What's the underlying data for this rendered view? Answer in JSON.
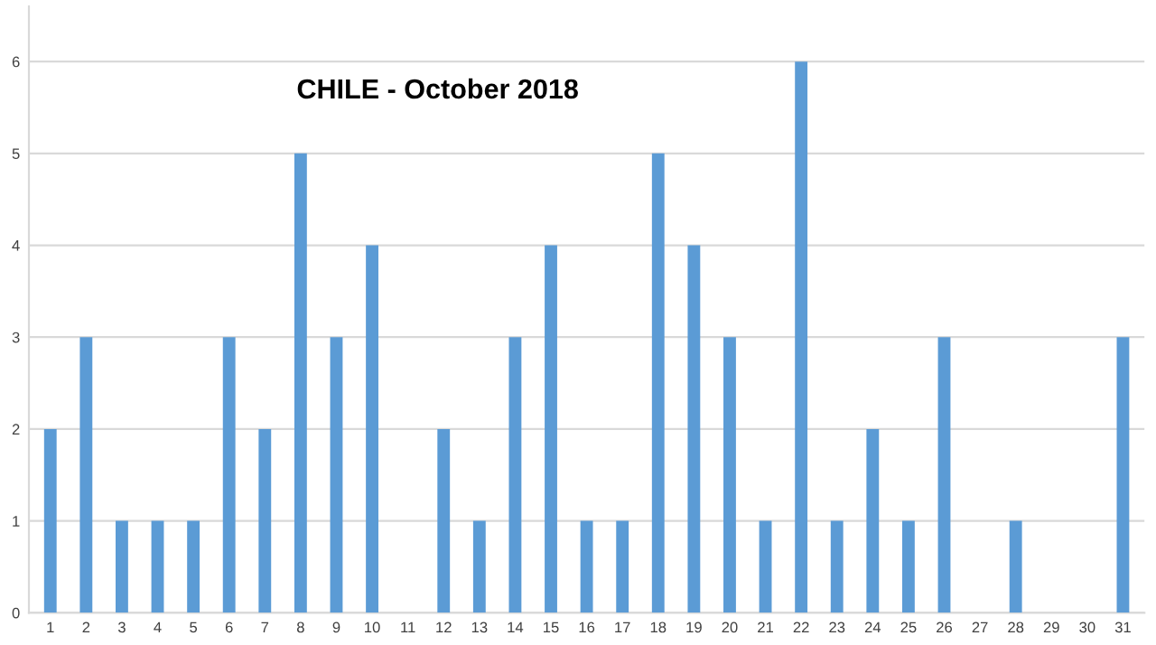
{
  "chart_data": {
    "type": "bar",
    "title": "CHILE - October 2018",
    "categories": [
      "1",
      "2",
      "3",
      "4",
      "5",
      "6",
      "7",
      "8",
      "9",
      "10",
      "11",
      "12",
      "13",
      "14",
      "15",
      "16",
      "17",
      "18",
      "19",
      "20",
      "21",
      "22",
      "23",
      "24",
      "25",
      "26",
      "27",
      "28",
      "29",
      "30",
      "31"
    ],
    "values": [
      2,
      3,
      1,
      1,
      1,
      3,
      2,
      5,
      3,
      4,
      0,
      2,
      1,
      3,
      4,
      1,
      1,
      5,
      4,
      3,
      1,
      6,
      1,
      2,
      1,
      3,
      0,
      1,
      0,
      0,
      3
    ],
    "color": "#5b9bd5",
    "ylim": [
      0,
      6.6
    ],
    "yticks": [
      0,
      1,
      2,
      3,
      4,
      5,
      6
    ],
    "grid": "y"
  }
}
